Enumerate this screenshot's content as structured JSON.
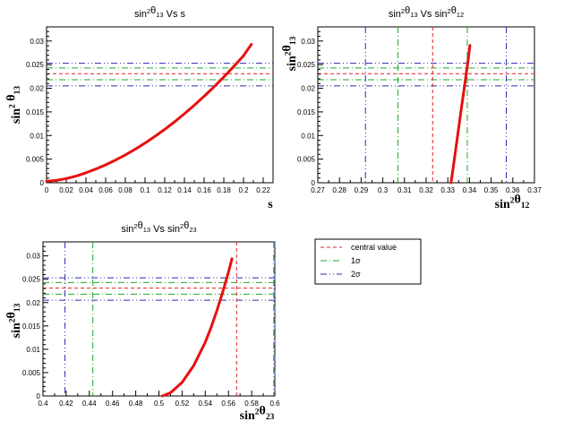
{
  "chart_data": [
    {
      "type": "line",
      "title": {
        "base": "sin",
        "sup": "2",
        "mid": "θ",
        "sub": "13",
        "rest": " Vs s"
      },
      "xlabel": {
        "base": "s"
      },
      "ylabel": {
        "base": "sin",
        "sup": "2",
        "mid": " θ",
        "sub": "13"
      },
      "xlim": [
        0,
        0.23
      ],
      "ylim": [
        0,
        0.033
      ],
      "xticks": [
        0,
        0.02,
        0.04,
        0.06,
        0.08,
        0.1,
        0.12,
        0.14,
        0.16,
        0.18,
        0.2,
        0.22
      ],
      "xtick_labels": [
        "0",
        "0.02",
        "0.04",
        "0.06",
        "0.08",
        "0.1",
        "0.12",
        "0.14",
        "0.16",
        "0.18",
        "0.2",
        "0.22"
      ],
      "yticks": [
        0,
        0.005,
        0.01,
        0.015,
        0.02,
        0.025,
        0.03
      ],
      "ytick_labels": [
        "0",
        "0.005",
        "0.01",
        "0.015",
        "0.02",
        "0.025",
        "0.03"
      ],
      "hlines": [
        {
          "y": 0.0231,
          "style": "central"
        },
        {
          "y": 0.0218,
          "style": "1sigma"
        },
        {
          "y": 0.0243,
          "style": "1sigma"
        },
        {
          "y": 0.0205,
          "style": "2sigma"
        },
        {
          "y": 0.0253,
          "style": "2sigma"
        }
      ],
      "vlines": [],
      "curve": {
        "x": [
          0,
          0.01,
          0.02,
          0.03,
          0.04,
          0.05,
          0.06,
          0.07,
          0.08,
          0.09,
          0.1,
          0.11,
          0.12,
          0.13,
          0.14,
          0.15,
          0.16,
          0.17,
          0.18,
          0.19,
          0.2,
          0.208
        ],
        "y": [
          0.0003,
          0.0005,
          0.0009,
          0.0014,
          0.0021,
          0.0029,
          0.0038,
          0.0048,
          0.0059,
          0.0071,
          0.0084,
          0.0098,
          0.0113,
          0.0129,
          0.0146,
          0.0164,
          0.0183,
          0.0203,
          0.0224,
          0.0246,
          0.0269,
          0.0293
        ]
      }
    },
    {
      "type": "line",
      "title": {
        "base": "sin",
        "sup": "2",
        "mid": "θ",
        "sub": "13",
        "rest": " Vs sin",
        "sup2": "2",
        "mid2": "θ",
        "sub2": "12"
      },
      "xlabel": {
        "base": "sin",
        "sup": "2",
        "mid": "θ",
        "sub": "12"
      },
      "ylabel": {
        "base": "sin",
        "sup": "2",
        "mid": "θ",
        "sub": "13"
      },
      "xlim": [
        0.27,
        0.37
      ],
      "ylim": [
        0,
        0.033
      ],
      "xticks": [
        0.27,
        0.28,
        0.29,
        0.3,
        0.31,
        0.32,
        0.33,
        0.34,
        0.35,
        0.36,
        0.37
      ],
      "xtick_labels": [
        "0.27",
        "0.28",
        "0.29",
        "0.3",
        "0.31",
        "0.32",
        "0.33",
        "0.34",
        "0.35",
        "0.36",
        "0.37"
      ],
      "yticks": [
        0,
        0.005,
        0.01,
        0.015,
        0.02,
        0.025,
        0.03
      ],
      "ytick_labels": [
        "0",
        "0.005",
        "0.01",
        "0.015",
        "0.02",
        "0.025",
        "0.03"
      ],
      "hlines": [
        {
          "y": 0.0231,
          "style": "central"
        },
        {
          "y": 0.0218,
          "style": "1sigma"
        },
        {
          "y": 0.0243,
          "style": "1sigma"
        },
        {
          "y": 0.0205,
          "style": "2sigma"
        },
        {
          "y": 0.0253,
          "style": "2sigma"
        }
      ],
      "vlines": [
        {
          "x": 0.323,
          "style": "central"
        },
        {
          "x": 0.307,
          "style": "1sigma"
        },
        {
          "x": 0.339,
          "style": "1sigma"
        },
        {
          "x": 0.292,
          "style": "2sigma"
        },
        {
          "x": 0.357,
          "style": "2sigma"
        }
      ],
      "curve": {
        "x": [
          0.3315,
          0.3325,
          0.3335,
          0.3345,
          0.3355,
          0.3365,
          0.3375,
          0.3385,
          0.3395,
          0.3402
        ],
        "y": [
          0.0,
          0.0033,
          0.0066,
          0.0099,
          0.0132,
          0.0165,
          0.0198,
          0.0231,
          0.0264,
          0.0291
        ]
      }
    },
    {
      "type": "line",
      "title": {
        "base": "sin",
        "sup": "2",
        "mid": "θ",
        "sub": "13",
        "rest": " Vs sin",
        "sup2": "2",
        "mid2": "θ",
        "sub2": "23"
      },
      "xlabel": {
        "base": "sin",
        "sup": "2",
        "mid": "θ",
        "sub": "23"
      },
      "ylabel": {
        "base": "sin",
        "sup": "2",
        "mid": "θ",
        "sub": "13"
      },
      "xlim": [
        0.4,
        0.6
      ],
      "ylim": [
        0,
        0.033
      ],
      "xticks": [
        0.4,
        0.42,
        0.44,
        0.46,
        0.48,
        0.5,
        0.52,
        0.54,
        0.56,
        0.58,
        0.6
      ],
      "xtick_labels": [
        "0.4",
        "0.42",
        "0.44",
        "0.46",
        "0.48",
        "0.5",
        "0.52",
        "0.54",
        "0.56",
        "0.58",
        "0.6"
      ],
      "yticks": [
        0,
        0.005,
        0.01,
        0.015,
        0.02,
        0.025,
        0.03
      ],
      "ytick_labels": [
        "0",
        "0.005",
        "0.01",
        "0.015",
        "0.02",
        "0.025",
        "0.03"
      ],
      "hlines": [
        {
          "y": 0.0231,
          "style": "central"
        },
        {
          "y": 0.0218,
          "style": "1sigma"
        },
        {
          "y": 0.0243,
          "style": "1sigma"
        },
        {
          "y": 0.0205,
          "style": "2sigma"
        },
        {
          "y": 0.0253,
          "style": "2sigma"
        }
      ],
      "vlines": [
        {
          "x": 0.567,
          "style": "central"
        },
        {
          "x": 0.443,
          "style": "1sigma"
        },
        {
          "x": 0.599,
          "style": "1sigma"
        },
        {
          "x": 0.419,
          "style": "2sigma"
        },
        {
          "x": 0.602,
          "style": "2sigma"
        }
      ],
      "curve": {
        "x": [
          0.503,
          0.51,
          0.52,
          0.53,
          0.54,
          0.545,
          0.55,
          0.555,
          0.56,
          0.563
        ],
        "y": [
          0.0,
          0.0007,
          0.0029,
          0.0065,
          0.0115,
          0.0147,
          0.0183,
          0.0222,
          0.0265,
          0.0294
        ]
      }
    }
  ],
  "legend": {
    "placement": "right of bottom-left plot",
    "entries": [
      {
        "label": "central value",
        "style": "central"
      },
      {
        "label": "1σ",
        "style": "1sigma"
      },
      {
        "label": "2σ",
        "style": "2sigma"
      }
    ]
  },
  "colors": {
    "central": "#e0202a",
    "1sigma": "#1faa2a",
    "2sigma": "#2a2ab0",
    "curve": "#e81010",
    "axis": "#000000"
  }
}
